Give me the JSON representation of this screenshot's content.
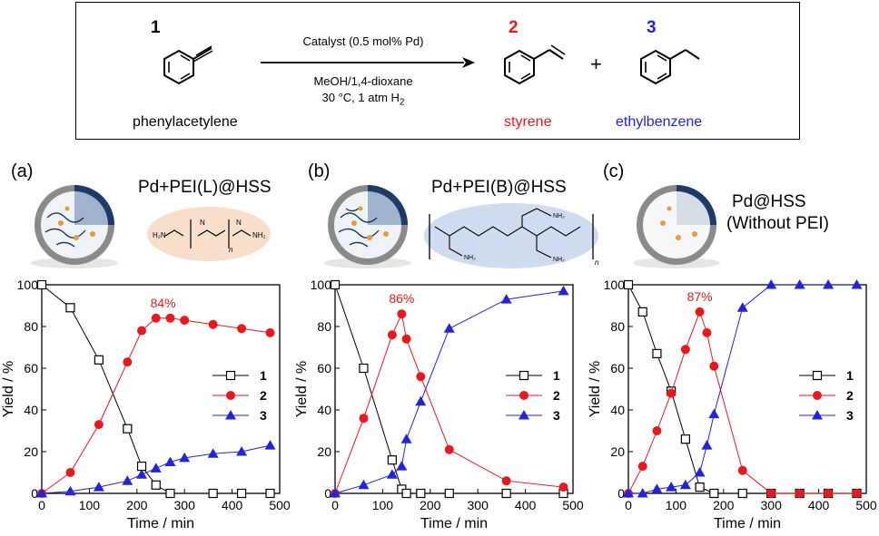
{
  "scheme": {
    "reactant": {
      "number": "1",
      "name": "phenylacetylene"
    },
    "product_a": {
      "number": "2",
      "name": "styrene",
      "color": "#e8191e"
    },
    "product_b": {
      "number": "3",
      "name": "ethylbenzene",
      "color": "#2323d8"
    },
    "plus": "+",
    "catalyst": "Catalyst (0.5 mol% Pd)",
    "solvent": "MeOH/1,4-dioxane",
    "conditions": "30 °C, 1 atm H",
    "conditions_sub": "2"
  },
  "panels": [
    {
      "label": "(a)",
      "title": "Pd+PEI(L)@HSS",
      "subtitle": ""
    },
    {
      "label": "(b)",
      "title": "Pd+PEI(B)@HSS",
      "subtitle": ""
    },
    {
      "label": "(c)",
      "title": "Pd@HSS",
      "subtitle": "(Without PEI)"
    }
  ],
  "colors": {
    "series1": "#000000",
    "series2": "#e8191e",
    "series3": "#2323d8",
    "annotation": "#e8191e"
  },
  "chart_data": [
    {
      "type": "line",
      "xlabel": "Time / min",
      "ylabel": "Yield / %",
      "xlim": [
        0,
        500
      ],
      "ylim": [
        0,
        100
      ],
      "xticks": [
        0,
        100,
        200,
        300,
        400,
        500
      ],
      "yticks": [
        0,
        20,
        40,
        60,
        80,
        100
      ],
      "legend": "right",
      "annotation": {
        "text": "84%",
        "x": 255,
        "y": 84
      },
      "series": [
        {
          "name": "1",
          "marker": "square-open",
          "x": [
            0,
            60,
            120,
            180,
            210,
            240,
            270,
            360,
            420,
            480
          ],
          "y": [
            100,
            89,
            64,
            31,
            13,
            4,
            0,
            0,
            0,
            0
          ]
        },
        {
          "name": "2",
          "marker": "circle",
          "x": [
            0,
            60,
            120,
            180,
            210,
            240,
            270,
            300,
            360,
            420,
            480
          ],
          "y": [
            0,
            10,
            33,
            63,
            78,
            84,
            84,
            83,
            81,
            79,
            77
          ]
        },
        {
          "name": "3",
          "marker": "triangle",
          "x": [
            0,
            60,
            120,
            180,
            210,
            240,
            270,
            300,
            360,
            420,
            480
          ],
          "y": [
            0,
            1,
            3,
            6,
            9,
            12,
            15,
            17,
            19,
            20,
            23
          ]
        }
      ]
    },
    {
      "type": "line",
      "xlabel": "Time / min",
      "ylabel": "Yield / %",
      "xlim": [
        0,
        500
      ],
      "ylim": [
        0,
        100
      ],
      "xticks": [
        0,
        100,
        200,
        300,
        400,
        500
      ],
      "yticks": [
        0,
        20,
        40,
        60,
        80,
        100
      ],
      "legend": "right",
      "annotation": {
        "text": "86%",
        "x": 140,
        "y": 86
      },
      "series": [
        {
          "name": "1",
          "marker": "square-open",
          "x": [
            0,
            60,
            120,
            140,
            150,
            180,
            240,
            360,
            480
          ],
          "y": [
            100,
            60,
            16,
            2,
            0,
            0,
            0,
            0,
            0
          ]
        },
        {
          "name": "2",
          "marker": "circle",
          "x": [
            0,
            60,
            120,
            140,
            150,
            180,
            240,
            360,
            480
          ],
          "y": [
            0,
            36,
            76,
            86,
            74,
            56,
            21,
            6,
            3
          ]
        },
        {
          "name": "3",
          "marker": "triangle",
          "x": [
            0,
            60,
            120,
            140,
            150,
            180,
            240,
            360,
            480
          ],
          "y": [
            0,
            4,
            9,
            13,
            26,
            44,
            79,
            93,
            97
          ]
        }
      ]
    },
    {
      "type": "line",
      "xlabel": "Time / min",
      "ylabel": "Yield / %",
      "xlim": [
        0,
        500
      ],
      "ylim": [
        0,
        100
      ],
      "xticks": [
        0,
        100,
        200,
        300,
        400,
        500
      ],
      "yticks": [
        0,
        20,
        40,
        60,
        80,
        100
      ],
      "legend": "right",
      "annotation": {
        "text": "87%",
        "x": 150,
        "y": 87
      },
      "series": [
        {
          "name": "1",
          "marker": "square-open",
          "x": [
            0,
            30,
            60,
            90,
            120,
            150,
            180,
            240,
            300,
            360,
            420,
            480
          ],
          "y": [
            100,
            87,
            67,
            49,
            26,
            3,
            0,
            0,
            0,
            0,
            0,
            0
          ]
        },
        {
          "name": "2",
          "marker": "circle",
          "x": [
            0,
            30,
            60,
            90,
            120,
            150,
            165,
            180,
            240,
            300,
            360,
            420,
            480
          ],
          "y": [
            0,
            13,
            30,
            48,
            69,
            87,
            77,
            61,
            11,
            0,
            0,
            0,
            0
          ]
        },
        {
          "name": "3",
          "marker": "triangle",
          "x": [
            0,
            30,
            60,
            90,
            120,
            150,
            165,
            180,
            240,
            300,
            360,
            420,
            480
          ],
          "y": [
            0,
            0,
            2,
            3,
            4,
            10,
            23,
            38,
            89,
            100,
            100,
            100,
            100
          ]
        }
      ]
    }
  ]
}
